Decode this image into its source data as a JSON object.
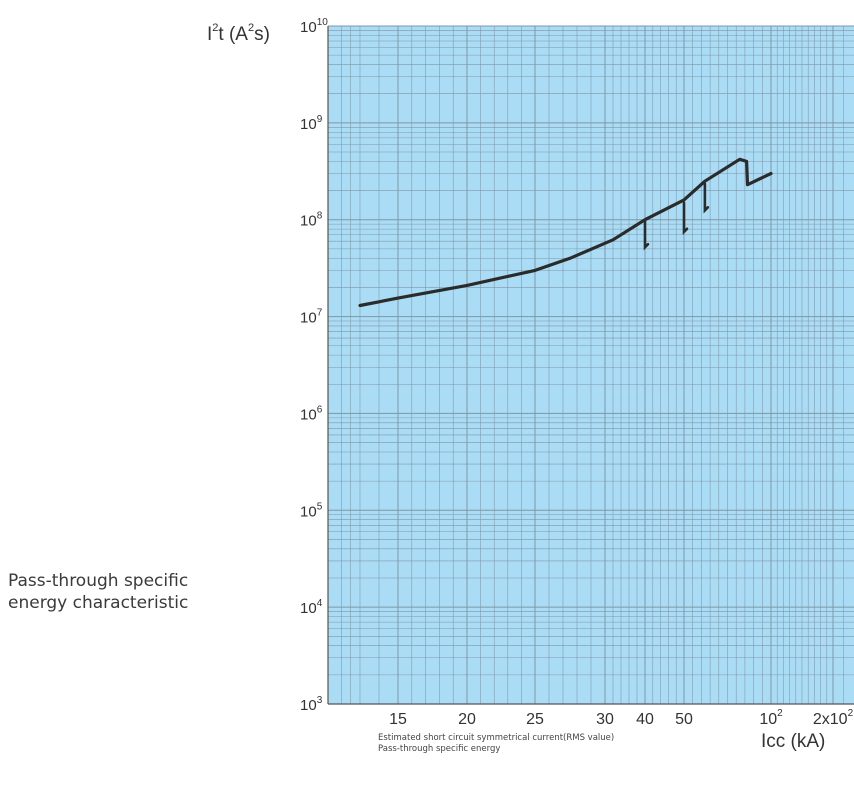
{
  "side_caption": [
    "Pass-through specific",
    "energy characteristic"
  ],
  "bottom_caption": [
    "Estimated short circuit symmetrical current(RMS value)",
    "Pass-through specific energy"
  ],
  "chart_data": {
    "type": "line",
    "title": "",
    "ylabel": {
      "base": "I",
      "sup1": "2",
      "mid": "t (A",
      "sup2": "2",
      "end": "s)"
    },
    "xlabel": "Icc (kA)",
    "y_scale": "log",
    "ylim": [
      1000,
      10000000000
    ],
    "y_ticks": [
      {
        "base": "10",
        "exp": "3"
      },
      {
        "base": "10",
        "exp": "4"
      },
      {
        "base": "10",
        "exp": "5"
      },
      {
        "base": "10",
        "exp": "6"
      },
      {
        "base": "10",
        "exp": "7"
      },
      {
        "base": "10",
        "exp": "8"
      },
      {
        "base": "10",
        "exp": "9"
      },
      {
        "base": "10",
        "exp": "10"
      }
    ],
    "x_ticks": [
      {
        "label": "15",
        "sup": ""
      },
      {
        "label": "20",
        "sup": ""
      },
      {
        "label": "25",
        "sup": ""
      },
      {
        "label": "30",
        "sup": ""
      },
      {
        "label": "40",
        "sup": ""
      },
      {
        "label": "50",
        "sup": ""
      },
      {
        "label": "10",
        "sup": "2"
      },
      {
        "label": "2x10",
        "sup": "2"
      }
    ],
    "grid": true,
    "colors": {
      "plot_bg": "#abdcf5",
      "grid": "#7f96a6",
      "curve": "#2b2b2b"
    },
    "series": [
      {
        "name": "",
        "points": [
          {
            "x": 13,
            "y": 13000000
          },
          {
            "x": 15,
            "y": 15500000
          },
          {
            "x": 20,
            "y": 21000000
          },
          {
            "x": 25,
            "y": 30000000
          },
          {
            "x": 27.5,
            "y": 40000000
          },
          {
            "x": 32,
            "y": 62000000
          },
          {
            "x": 40,
            "y": 100000000
          },
          {
            "x": 50,
            "y": 160000000
          },
          {
            "x": 62,
            "y": 250000000
          },
          {
            "x": 82,
            "y": 420000000
          },
          {
            "x": 86,
            "y": 400000000
          },
          {
            "x": 86.5,
            "y": 230000000
          },
          {
            "x": 100,
            "y": 300000000
          }
        ]
      }
    ],
    "cutoff_branches": [
      {
        "x": 40,
        "y_top": 100000000,
        "y_bottom": 52000000
      },
      {
        "x": 50,
        "y_top": 150000000,
        "y_bottom": 75000000
      },
      {
        "x": 62,
        "y_top": 235000000,
        "y_bottom": 125000000
      }
    ]
  }
}
